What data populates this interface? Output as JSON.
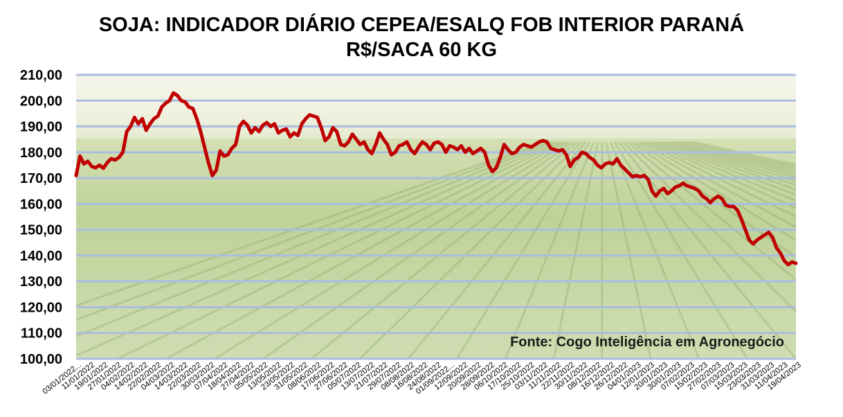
{
  "chart_data": {
    "type": "line",
    "title": "SOJA: INDICADOR DIÁRIO CEPEA/ESALQ FOB INTERIOR PARANÁ",
    "subtitle": "R$/SACA 60 KG",
    "source_note": "Fonte: Cogo Inteligência em Agronegócio",
    "ylim": [
      100,
      210
    ],
    "y_ticks": [
      "100,00",
      "110,00",
      "120,00",
      "130,00",
      "140,00",
      "150,00",
      "160,00",
      "170,00",
      "180,00",
      "190,00",
      "200,00",
      "210,00"
    ],
    "x_tick_labels": [
      "03/01/2022...",
      "11/01/2022",
      "19/01/2022",
      "27/01/2022",
      "04/02/2022",
      "14/02/2022",
      "22/02/2022",
      "04/03/2022",
      "14/03/2022",
      "22/03/2022",
      "30/03/2022",
      "07/04/2022",
      "18/04/2022",
      "27/04/2022",
      "05/05/2022",
      "13/05/2022",
      "23/05/2022",
      "31/05/2022",
      "08/06/2022",
      "17/06/2022",
      "27/06/2022",
      "05/07/2022",
      "13/07/2022",
      "21/07/2022",
      "29/07/2022",
      "08/08/2022",
      "16/08/2022",
      "24/08/2022",
      "01/09/2022...",
      "12/09/2022",
      "20/09/2022",
      "28/09/2022",
      "06/10/2022",
      "17/10/2022",
      "25/10/2022",
      "03/11/2022",
      "11/11/2022",
      "22/11/2022",
      "30/11/2022",
      "08/12/2022",
      "16/12/2022",
      "26/12/2022",
      "04/01/2023",
      "12/01/2023",
      "20/01/2023",
      "30/01/2023",
      "07/02/2023",
      "15/02/2023",
      "27/02/2023",
      "07/03/2023",
      "15/03/2023",
      "23/03/2023",
      "31/03/2023",
      "11/04/2023",
      "19/04/2023"
    ],
    "grid": true,
    "background": "soybean-field-photo",
    "line_color": "#c00000",
    "grid_color": "#a8bde0",
    "series": [
      {
        "values": [
          171.0,
          178.5,
          175.5,
          176.5,
          174.5,
          174.0,
          175.0,
          173.8,
          176.0,
          177.5,
          177.0,
          178.0,
          180.0,
          188.0,
          190.0,
          193.5,
          191.0,
          193.0,
          188.5,
          191.0,
          193.0,
          194.0,
          197.5,
          199.0,
          200.0,
          203.0,
          202.0,
          200.0,
          199.5,
          197.5,
          197.0,
          193.0,
          188.0,
          182.0,
          176.0,
          171.0,
          173.0,
          180.5,
          178.5,
          179.0,
          181.5,
          183.0,
          190.0,
          192.0,
          190.5,
          187.5,
          189.5,
          188.0,
          190.5,
          191.5,
          190.0,
          191.0,
          187.5,
          188.5,
          189.0,
          186.0,
          187.5,
          186.5,
          191.0,
          193.0,
          194.5,
          194.0,
          193.5,
          189.5,
          184.5,
          186.0,
          189.5,
          188.0,
          183.0,
          182.5,
          184.0,
          187.0,
          185.0,
          183.0,
          184.0,
          181.0,
          179.5,
          183.0,
          187.5,
          185.0,
          183.0,
          179.0,
          180.0,
          182.5,
          183.0,
          184.0,
          181.0,
          179.5,
          182.0,
          184.0,
          183.0,
          181.0,
          183.5,
          184.0,
          183.0,
          180.0,
          182.5,
          182.0,
          181.0,
          182.5,
          180.0,
          181.5,
          179.5,
          180.5,
          181.5,
          180.0,
          175.0,
          172.5,
          174.0,
          178.0,
          183.0,
          181.0,
          179.5,
          180.0,
          182.0,
          183.0,
          182.5,
          182.0,
          183.0,
          184.0,
          184.5,
          184.0,
          181.5,
          181.0,
          180.5,
          181.0,
          179.0,
          174.5,
          177.0,
          178.0,
          180.0,
          179.5,
          178.0,
          177.0,
          175.0,
          174.0,
          175.5,
          176.0,
          175.5,
          177.5,
          175.0,
          173.5,
          172.0,
          170.5,
          171.0,
          170.5,
          171.0,
          169.5,
          165.0,
          163.0,
          165.0,
          166.0,
          164.0,
          165.0,
          166.5,
          167.0,
          168.0,
          167.0,
          166.5,
          166.0,
          165.0,
          163.0,
          162.0,
          160.5,
          162.0,
          163.0,
          162.0,
          159.5,
          159.0,
          159.0,
          157.5,
          154.0,
          150.0,
          146.0,
          144.5,
          146.0,
          147.0,
          148.0,
          149.0,
          147.0,
          143.0,
          141.0,
          138.0,
          136.5,
          137.5,
          137.0
        ]
      }
    ]
  }
}
